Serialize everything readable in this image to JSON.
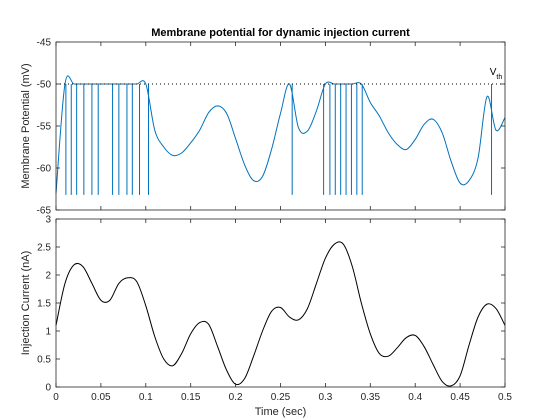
{
  "chart_data": [
    {
      "type": "line",
      "title": "Membrane potential for dynamic injection current",
      "xlabel": "",
      "ylabel": "Membrane Potential (mV)",
      "xlim": [
        0,
        0.5
      ],
      "ylim": [
        -65,
        -45
      ],
      "xticks": [
        0,
        0.05,
        0.1,
        0.15,
        0.2,
        0.25,
        0.3,
        0.35,
        0.4,
        0.45,
        0.5
      ],
      "xtick_labels": [
        "",
        "",
        "",
        "",
        "",
        "",
        "",
        "",
        "",
        "",
        ""
      ],
      "yticks": [
        -65,
        -60,
        -55,
        -50,
        -45
      ],
      "ytick_labels": [
        "-65",
        "-60",
        "-55",
        "-50",
        "-45"
      ],
      "threshold": {
        "y": -50,
        "style": "dotted",
        "label_main": "V",
        "label_sub": "th",
        "label_x": 0.483,
        "label_y": -48.9
      },
      "series_color": "#0072BD",
      "x": [
        0,
        0.01,
        0.02,
        0.03,
        0.04,
        0.05,
        0.06,
        0.07,
        0.08,
        0.09,
        0.1,
        0.11,
        0.12,
        0.13,
        0.14,
        0.15,
        0.16,
        0.17,
        0.18,
        0.19,
        0.2,
        0.21,
        0.22,
        0.23,
        0.24,
        0.25,
        0.26,
        0.27,
        0.28,
        0.29,
        0.3,
        0.31,
        0.32,
        0.33,
        0.34,
        0.35,
        0.36,
        0.37,
        0.38,
        0.39,
        0.4,
        0.41,
        0.42,
        0.43,
        0.44,
        0.45,
        0.46,
        0.47,
        0.48,
        0.49,
        0.5
      ],
      "y": [
        -63,
        -50,
        -50,
        -50,
        -50,
        -50,
        -50,
        -50,
        -50,
        -50,
        -50,
        -55.5,
        -57.5,
        -58.5,
        -58.2,
        -57.0,
        -55.5,
        -53.4,
        -52.6,
        -53.5,
        -56.5,
        -59.6,
        -61.5,
        -61.0,
        -57.8,
        -53.5,
        -50.0,
        -55.2,
        -55.6,
        -53.2,
        -50,
        -50,
        -50,
        -50,
        -50,
        -52.2,
        -53.8,
        -55.8,
        -57.2,
        -57.8,
        -56.6,
        -54.8,
        -54.2,
        -55.8,
        -59.2,
        -61.8,
        -61.5,
        -58.8,
        -51.5,
        -55.5,
        -54.0
      ],
      "spike_times": [
        0.011,
        0.017,
        0.023,
        0.031,
        0.04,
        0.047,
        0.063,
        0.07,
        0.079,
        0.085,
        0.093,
        0.103,
        0.263,
        0.298,
        0.305,
        0.311,
        0.317,
        0.323,
        0.329,
        0.335,
        0.341,
        0.485
      ]
    },
    {
      "type": "line",
      "title": "",
      "xlabel": "Time (sec)",
      "ylabel": "Injection Current (nA)",
      "xlim": [
        0,
        0.5
      ],
      "ylim": [
        0,
        3
      ],
      "xticks": [
        0,
        0.05,
        0.1,
        0.15,
        0.2,
        0.25,
        0.3,
        0.35,
        0.4,
        0.45,
        0.5
      ],
      "xtick_labels": [
        "0",
        "0.05",
        "0.1",
        "0.15",
        "0.2",
        "0.25",
        "0.3",
        "0.35",
        "0.4",
        "0.45",
        "0.5"
      ],
      "yticks": [
        0,
        0.5,
        1,
        1.5,
        2,
        2.5,
        3
      ],
      "ytick_labels": [
        "0",
        "0.5",
        "1",
        "1.5",
        "2",
        "2.5",
        "3"
      ],
      "series_color": "#000000",
      "x": [
        0,
        0.01,
        0.02,
        0.03,
        0.04,
        0.05,
        0.06,
        0.07,
        0.08,
        0.09,
        0.1,
        0.11,
        0.12,
        0.13,
        0.14,
        0.15,
        0.16,
        0.17,
        0.18,
        0.19,
        0.2,
        0.21,
        0.22,
        0.23,
        0.24,
        0.25,
        0.26,
        0.27,
        0.28,
        0.29,
        0.3,
        0.31,
        0.32,
        0.33,
        0.34,
        0.35,
        0.36,
        0.37,
        0.38,
        0.39,
        0.4,
        0.41,
        0.42,
        0.43,
        0.44,
        0.45,
        0.46,
        0.47,
        0.48,
        0.49,
        0.5
      ],
      "y": [
        1.1,
        1.85,
        2.18,
        2.15,
        1.85,
        1.55,
        1.55,
        1.85,
        1.95,
        1.88,
        1.45,
        0.9,
        0.5,
        0.38,
        0.6,
        0.95,
        1.15,
        1.12,
        0.72,
        0.3,
        0.05,
        0.15,
        0.55,
        1.0,
        1.35,
        1.42,
        1.25,
        1.2,
        1.4,
        1.85,
        2.3,
        2.55,
        2.55,
        2.15,
        1.5,
        0.95,
        0.6,
        0.55,
        0.7,
        0.88,
        0.92,
        0.72,
        0.4,
        0.1,
        0.02,
        0.2,
        0.75,
        1.25,
        1.48,
        1.4,
        1.1
      ]
    }
  ]
}
